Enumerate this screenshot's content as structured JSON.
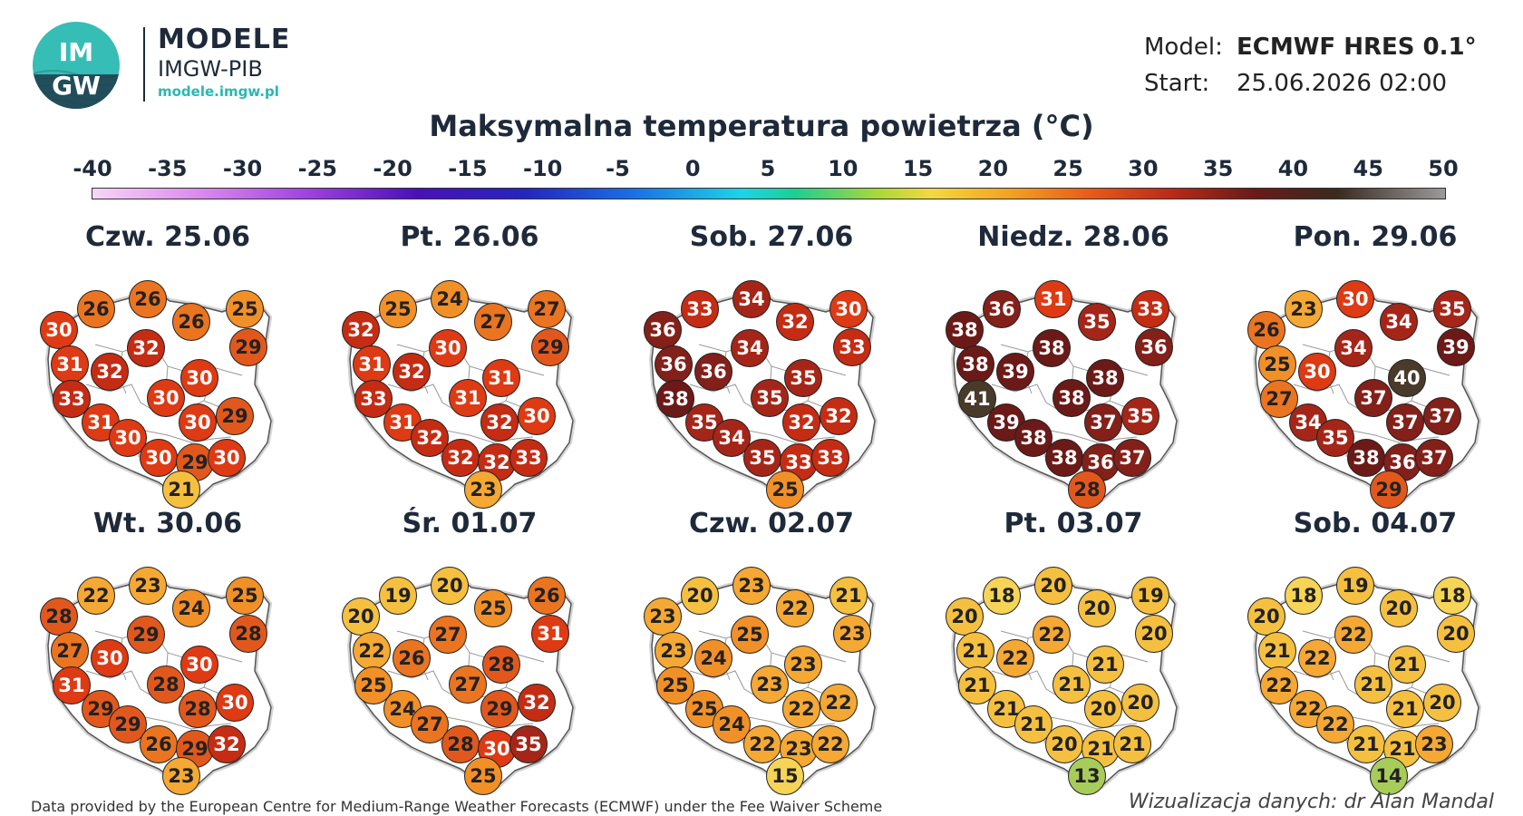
{
  "header": {
    "logo_text_top": "IM",
    "logo_text_bottom": "GW",
    "brand_title": "MODELE",
    "brand_subtitle": "IMGW-PIB",
    "brand_url": "modele.imgw.pl",
    "model_label": "Model:",
    "model_value": "ECMWF HRES 0.1°",
    "start_label": "Start:",
    "start_value": "25.06.2026 02:00"
  },
  "title": "Maksymalna temperatura powietrza (°C)",
  "colorbar": {
    "ticks": [
      "-40",
      "-35",
      "-30",
      "-25",
      "-20",
      "-15",
      "-10",
      "-5",
      "0",
      "5",
      "10",
      "15",
      "20",
      "25",
      "30",
      "35",
      "40",
      "45",
      "50"
    ],
    "min": -40,
    "max": 50
  },
  "days": [
    {
      "date": "Czw. 25.06",
      "values": [
        30,
        26,
        26,
        26,
        25,
        31,
        32,
        32,
        29,
        33,
        30,
        30,
        31,
        30,
        29,
        30,
        30,
        29,
        30,
        21
      ]
    },
    {
      "date": "Pt. 26.06",
      "values": [
        32,
        25,
        24,
        27,
        27,
        31,
        32,
        30,
        29,
        33,
        31,
        31,
        31,
        32,
        30,
        32,
        32,
        32,
        33,
        23
      ]
    },
    {
      "date": "Sob. 27.06",
      "values": [
        36,
        33,
        34,
        32,
        30,
        36,
        36,
        34,
        33,
        38,
        35,
        35,
        35,
        32,
        32,
        34,
        35,
        33,
        33,
        25
      ]
    },
    {
      "date": "Niedz. 28.06",
      "values": [
        38,
        36,
        31,
        35,
        33,
        38,
        39,
        38,
        36,
        41,
        38,
        38,
        39,
        37,
        35,
        38,
        38,
        36,
        37,
        28
      ]
    },
    {
      "date": "Pon. 29.06",
      "values": [
        26,
        23,
        30,
        34,
        35,
        25,
        30,
        34,
        39,
        27,
        37,
        40,
        34,
        37,
        37,
        35,
        38,
        36,
        37,
        29
      ]
    },
    {
      "date": "Wt. 30.06",
      "values": [
        28,
        22,
        23,
        24,
        25,
        27,
        30,
        29,
        28,
        31,
        28,
        30,
        29,
        28,
        30,
        29,
        26,
        29,
        32,
        23
      ]
    },
    {
      "date": "Śr. 01.07",
      "values": [
        20,
        19,
        20,
        25,
        26,
        22,
        26,
        27,
        31,
        25,
        27,
        28,
        24,
        29,
        32,
        27,
        28,
        30,
        35,
        25
      ]
    },
    {
      "date": "Czw. 02.07",
      "values": [
        23,
        20,
        23,
        22,
        21,
        23,
        24,
        25,
        23,
        25,
        23,
        23,
        25,
        22,
        22,
        24,
        22,
        23,
        22,
        15
      ]
    },
    {
      "date": "Pt. 03.07",
      "values": [
        20,
        18,
        20,
        20,
        19,
        21,
        22,
        22,
        20,
        21,
        21,
        21,
        21,
        20,
        20,
        21,
        20,
        21,
        21,
        13
      ]
    },
    {
      "date": "Sob. 04.07",
      "values": [
        20,
        18,
        19,
        20,
        18,
        21,
        22,
        22,
        20,
        22,
        21,
        21,
        22,
        21,
        20,
        22,
        21,
        21,
        23,
        14
      ]
    }
  ],
  "colors": {
    "temp_scale": [
      {
        "min": 0,
        "max": 15,
        "color": "#f2f28a"
      },
      {
        "min": 15,
        "max": 19,
        "color": "#f6d456"
      },
      {
        "min": 19,
        "max": 22,
        "color": "#f5c040"
      },
      {
        "min": 22,
        "max": 24,
        "color": "#f5a833"
      },
      {
        "min": 24,
        "max": 26,
        "color": "#f29028"
      },
      {
        "min": 26,
        "max": 28,
        "color": "#eb7420"
      },
      {
        "min": 28,
        "max": 30,
        "color": "#e2581c"
      },
      {
        "min": 30,
        "max": 32,
        "color": "#de3a14"
      },
      {
        "min": 32,
        "max": 34,
        "color": "#c52c14"
      },
      {
        "min": 34,
        "max": 36,
        "color": "#a52618"
      },
      {
        "min": 36,
        "max": 38,
        "color": "#83201a"
      },
      {
        "min": 38,
        "max": 40,
        "color": "#6b1a18"
      },
      {
        "min": 40,
        "max": 42,
        "color": "#4a3a2a"
      }
    ],
    "low_color": "#a8cc5a"
  },
  "footer": {
    "source": "Data provided by the European Centre for Medium-Range Weather Forecasts (ECMWF) under the Fee Waiver Scheme",
    "credit": "Wizualizacja danych: dr Alan Mandal"
  }
}
